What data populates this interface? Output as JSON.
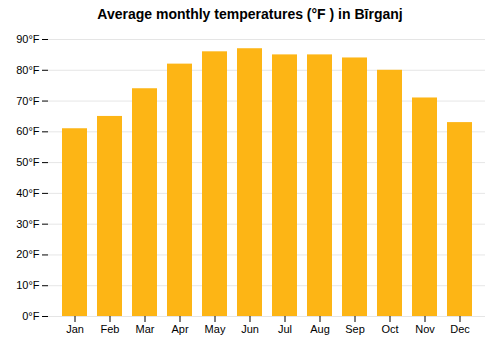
{
  "chart_data": {
    "type": "bar",
    "title": "Average monthly temperatures (°F ) in Bīrganj",
    "categories": [
      "Jan",
      "Feb",
      "Mar",
      "Apr",
      "May",
      "Jun",
      "Jul",
      "Aug",
      "Sep",
      "Oct",
      "Nov",
      "Dec"
    ],
    "values": [
      61,
      65,
      74,
      82,
      86,
      87,
      85,
      85,
      84,
      80,
      71,
      63
    ],
    "color": "#FDB515",
    "ylim": [
      0,
      90
    ],
    "yticks": [
      {
        "value": 0,
        "label": "0°F"
      },
      {
        "value": 10,
        "label": "10°F"
      },
      {
        "value": 20,
        "label": "20°F"
      },
      {
        "value": 30,
        "label": "30°F"
      },
      {
        "value": 40,
        "label": "40°F"
      },
      {
        "value": 50,
        "label": "50°F"
      },
      {
        "value": 60,
        "label": "60°F"
      },
      {
        "value": 70,
        "label": "70°F"
      },
      {
        "value": 80,
        "label": "80°F"
      },
      {
        "value": 90,
        "label": "90°F"
      }
    ],
    "grid": true
  }
}
